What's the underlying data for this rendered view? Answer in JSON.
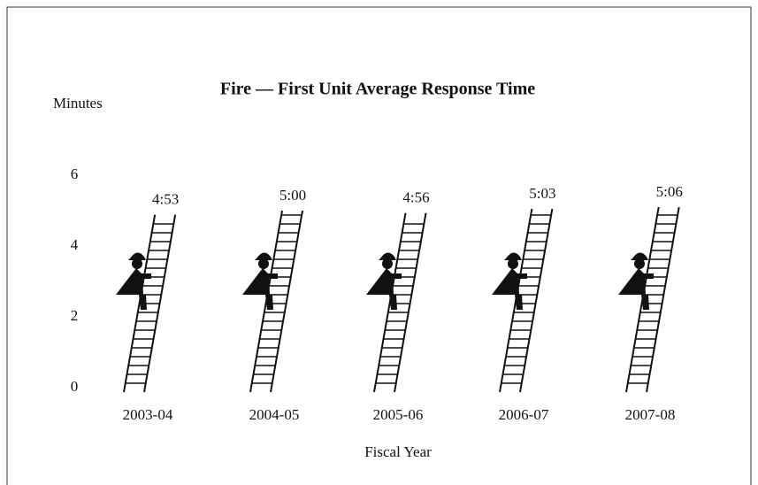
{
  "chart_data": {
    "type": "pictograph",
    "title": "Fire — First Unit Average Response Time",
    "y_label": "Minutes",
    "x_label": "Fiscal Year",
    "categories": [
      "2003-04",
      "2004-05",
      "2005-06",
      "2006-07",
      "2007-08"
    ],
    "values": [
      4.8833,
      5.0,
      4.9333,
      5.05,
      5.1
    ],
    "value_labels": [
      "4:53",
      "5:00",
      "4:56",
      "5:03",
      "5:06"
    ],
    "color": "#111111",
    "ylim": [
      0,
      6
    ],
    "yticks": [
      0,
      2,
      4,
      6
    ]
  }
}
